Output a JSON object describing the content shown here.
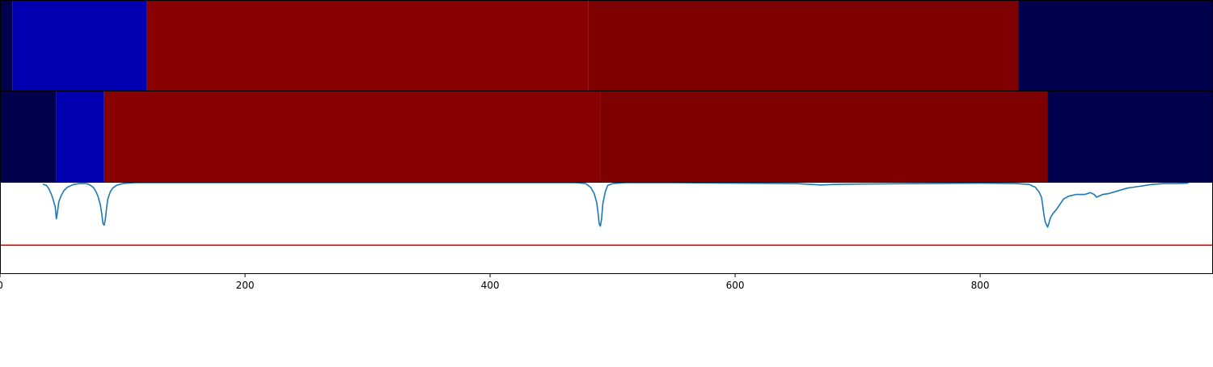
{
  "chart_data": {
    "type": "heatmap",
    "title": "",
    "xlabel": "",
    "ylabel": "",
    "xlim": [
      0,
      990
    ],
    "x_ticks": [
      0,
      200,
      400,
      600,
      800
    ],
    "x_tick_labels": [
      "0",
      "200",
      "400",
      "600",
      "800"
    ],
    "heatmap_rows": [
      {
        "segments": [
          {
            "start": 0,
            "end": 10,
            "color": "#00004c"
          },
          {
            "start": 10,
            "end": 120,
            "color": "#0000b0"
          },
          {
            "start": 120,
            "end": 480,
            "color": "#880000"
          },
          {
            "start": 480,
            "end": 831,
            "color": "#7e0000"
          },
          {
            "start": 831,
            "end": 990,
            "color": "#00004c"
          }
        ]
      },
      {
        "segments": [
          {
            "start": 0,
            "end": 46,
            "color": "#00004c"
          },
          {
            "start": 46,
            "end": 85,
            "color": "#0000b0"
          },
          {
            "start": 85,
            "end": 490,
            "color": "#880000"
          },
          {
            "start": 490,
            "end": 855,
            "color": "#7e0000"
          },
          {
            "start": 855,
            "end": 990,
            "color": "#00004c"
          }
        ]
      }
    ],
    "line_panel": {
      "ylim": [
        0,
        1
      ],
      "threshold": 0.31,
      "threshold_color": "#dd0000",
      "line_color": "#1f77b4",
      "series": [
        {
          "x": [
            35,
            38,
            40,
            42,
            43,
            44,
            45,
            46,
            47,
            48,
            50,
            52,
            55,
            60,
            65,
            70,
            72,
            74,
            76,
            78,
            80,
            82,
            83,
            84,
            85,
            86,
            87,
            88,
            90,
            92,
            95,
            100,
            110,
            120,
            200,
            300,
            400,
            470,
            478,
            482,
            485,
            487,
            488,
            489,
            490,
            491,
            492,
            494,
            496,
            500,
            510,
            550,
            600,
            650,
            670,
            680,
            700,
            750,
            800,
            830,
            840,
            845,
            848,
            850,
            851,
            852,
            853,
            854,
            855,
            856,
            857,
            858,
            860,
            862,
            865,
            868,
            872,
            878,
            885,
            890,
            893,
            895,
            900,
            905,
            910,
            920,
            930,
            940,
            950,
            960,
            970
          ],
          "y": [
            0.985,
            0.97,
            0.93,
            0.87,
            0.83,
            0.78,
            0.74,
            0.6,
            0.68,
            0.79,
            0.86,
            0.91,
            0.95,
            0.98,
            0.99,
            0.99,
            0.985,
            0.97,
            0.95,
            0.91,
            0.85,
            0.75,
            0.66,
            0.55,
            0.53,
            0.6,
            0.72,
            0.82,
            0.9,
            0.94,
            0.97,
            0.99,
            1.0,
            1.0,
            1.0,
            1.0,
            1.0,
            1.0,
            0.99,
            0.95,
            0.88,
            0.78,
            0.68,
            0.55,
            0.52,
            0.6,
            0.77,
            0.9,
            0.97,
            0.99,
            1.0,
            1.0,
            0.995,
            0.99,
            0.975,
            0.98,
            0.985,
            0.99,
            0.995,
            0.99,
            0.98,
            0.95,
            0.9,
            0.84,
            0.75,
            0.65,
            0.57,
            0.54,
            0.51,
            0.55,
            0.6,
            0.63,
            0.67,
            0.7,
            0.76,
            0.82,
            0.85,
            0.87,
            0.87,
            0.89,
            0.87,
            0.84,
            0.87,
            0.88,
            0.9,
            0.94,
            0.96,
            0.98,
            0.99,
            0.99,
            0.995
          ]
        }
      ]
    },
    "grid": false,
    "legend": "none"
  }
}
